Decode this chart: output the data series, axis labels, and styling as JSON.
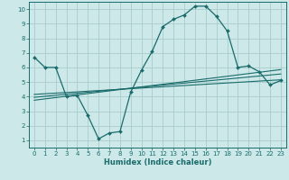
{
  "title": "",
  "xlabel": "Humidex (Indice chaleur)",
  "xlim": [
    -0.5,
    23.5
  ],
  "ylim": [
    0.5,
    10.5
  ],
  "bg_color": "#cce8e8",
  "grid_color": "#aacccc",
  "line_color": "#1a6b6b",
  "curve1_x": [
    0,
    1,
    2,
    3,
    4,
    5,
    6,
    7,
    8,
    9,
    10,
    11,
    12,
    13,
    14,
    15,
    16,
    17,
    18,
    19,
    20,
    21,
    22,
    23
  ],
  "curve1_y": [
    6.7,
    6.0,
    6.0,
    4.0,
    4.1,
    2.7,
    1.1,
    1.5,
    1.6,
    4.3,
    5.8,
    7.1,
    8.8,
    9.3,
    9.6,
    10.2,
    10.2,
    9.5,
    8.5,
    6.0,
    6.1,
    5.7,
    4.8,
    5.1
  ],
  "line2_x": [
    0,
    23
  ],
  "line2_y": [
    4.15,
    5.15
  ],
  "line3_x": [
    0,
    23
  ],
  "line3_y": [
    3.95,
    5.55
  ],
  "line4_x": [
    0,
    23
  ],
  "line4_y": [
    3.75,
    5.85
  ],
  "x_ticks": [
    0,
    1,
    2,
    3,
    4,
    5,
    6,
    7,
    8,
    9,
    10,
    11,
    12,
    13,
    14,
    15,
    16,
    17,
    18,
    19,
    20,
    21,
    22,
    23
  ],
  "y_ticks": [
    1,
    2,
    3,
    4,
    5,
    6,
    7,
    8,
    9,
    10
  ],
  "tick_fontsize": 5.0,
  "xlabel_fontsize": 6.0
}
